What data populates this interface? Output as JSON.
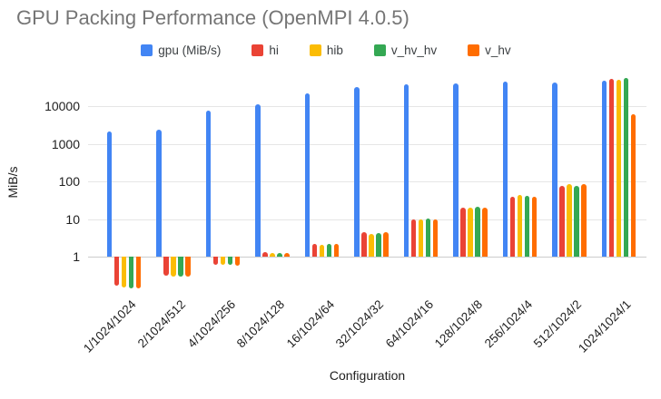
{
  "title": "GPU Packing Performance (OpenMPI 4.0.5)",
  "chart_data": {
    "type": "bar",
    "title": "GPU Packing Performance (OpenMPI 4.0.5)",
    "xlabel": "Configuration",
    "ylabel": "MiB/s",
    "y_scale": "log",
    "y_ticks": [
      1,
      10,
      100,
      1000,
      10000
    ],
    "ylim": [
      0.1,
      60000
    ],
    "grid": true,
    "legend_position": "top",
    "title_color": "#757575",
    "categories": [
      "1/1024/1024",
      "2/1024/512",
      "4/1024/256",
      "8/1024/128",
      "16/1024/64",
      "32/1024/32",
      "64/1024/16",
      "128/1024/8",
      "256/1024/4",
      "512/1024/2",
      "1024/1024/1"
    ],
    "series": [
      {
        "id": "gpu",
        "name": "gpu (MiB/s)",
        "color": "#4285F4",
        "values": [
          2100,
          2400,
          7800,
          11500,
          22000,
          31500,
          38000,
          40000,
          44000,
          42000,
          46500
        ]
      },
      {
        "id": "hi",
        "name": "hi",
        "color": "#EA4335",
        "values": [
          0.17,
          0.32,
          0.6,
          1.3,
          2.2,
          4.5,
          10,
          20,
          38,
          75,
          53000
        ]
      },
      {
        "id": "hib",
        "name": "hib",
        "color": "#FBBC04",
        "values": [
          0.15,
          0.3,
          0.6,
          1.25,
          2.1,
          4.0,
          10,
          20,
          43,
          83,
          50000
        ]
      },
      {
        "id": "v_hv_hv",
        "name": "v_hv_hv",
        "color": "#34A853",
        "values": [
          0.14,
          0.29,
          0.6,
          1.22,
          2.2,
          4.2,
          10.5,
          21,
          41,
          75,
          55000
        ]
      },
      {
        "id": "v_hv",
        "name": "v_hv",
        "color": "#FF6D01",
        "values": [
          0.14,
          0.3,
          0.57,
          1.25,
          2.2,
          4.5,
          10,
          20,
          40,
          83,
          6000
        ]
      }
    ]
  }
}
